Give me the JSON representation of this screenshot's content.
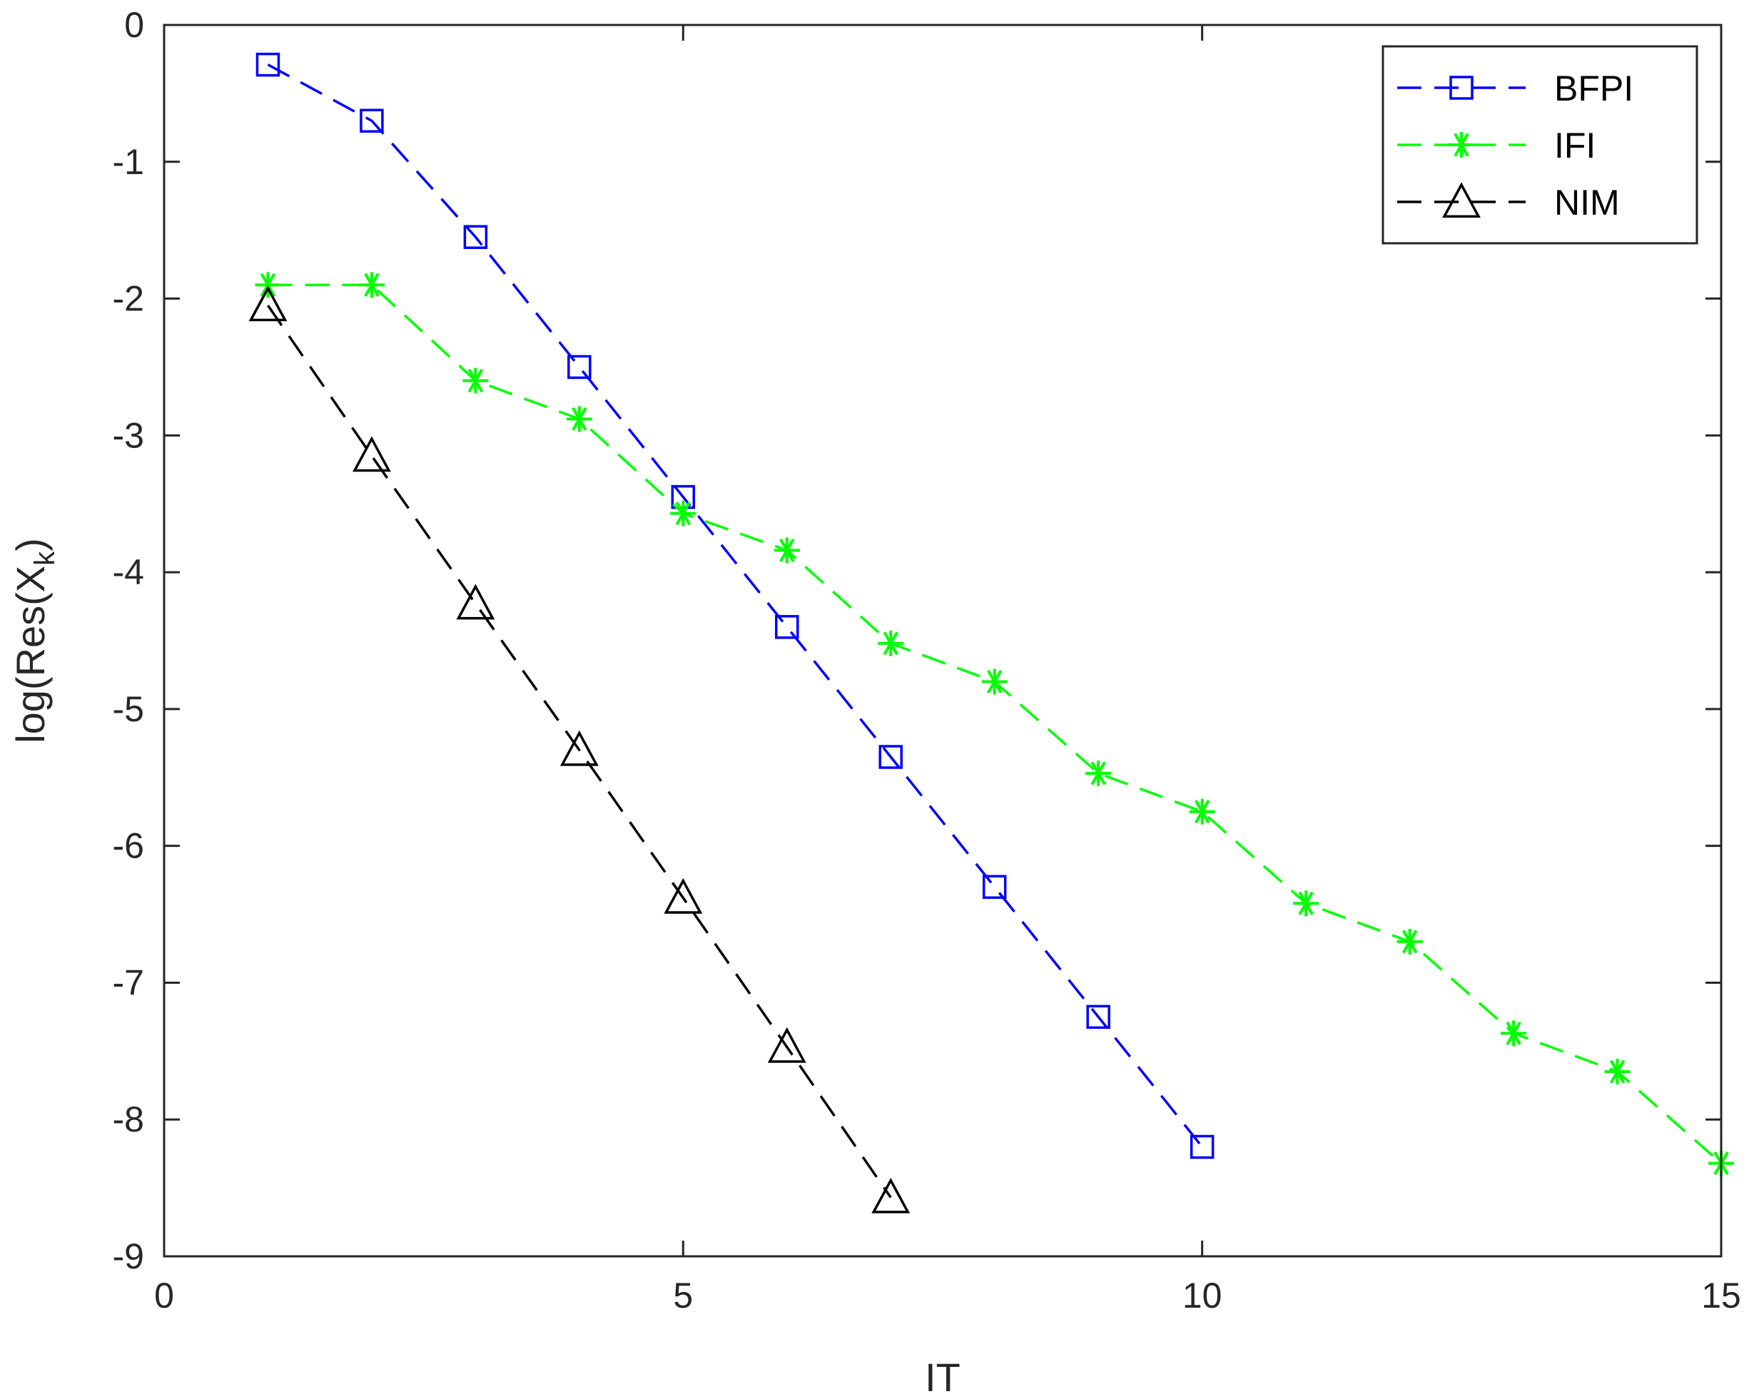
{
  "chart_data": {
    "type": "line",
    "xlabel": "IT",
    "ylabel": {
      "main": "log(Res(X",
      "sub": "k",
      "close": ")"
    },
    "xlim": [
      0,
      15
    ],
    "ylim": [
      -9,
      0
    ],
    "xticks": [
      0,
      5,
      10,
      15
    ],
    "xtick_labels": [
      "0",
      "5",
      "10",
      "15"
    ],
    "yticks": [
      0,
      -1,
      -2,
      -3,
      -4,
      -5,
      -6,
      -7,
      -8,
      -9
    ],
    "ytick_labels": [
      "0",
      "-1",
      "-2",
      "-3",
      "-4",
      "-5",
      "-6",
      "-7",
      "-8",
      "-9"
    ],
    "grid": false,
    "legend_position": "top-right",
    "series": [
      {
        "name": "BFPI",
        "color": "#0000ff",
        "marker": "square",
        "line_style": "dashed",
        "x": [
          1,
          2,
          3,
          4,
          5,
          6,
          7,
          8,
          9,
          10
        ],
        "y": [
          -0.29,
          -0.7,
          -1.55,
          -2.5,
          -3.45,
          -4.4,
          -5.35,
          -6.3,
          -7.25,
          -8.2
        ]
      },
      {
        "name": "IFI",
        "color": "#00ff00",
        "marker": "asterisk",
        "line_style": "dashed",
        "x": [
          1,
          2,
          3,
          4,
          5,
          6,
          7,
          8,
          9,
          10,
          11,
          12,
          13,
          14,
          15
        ],
        "y": [
          -1.9,
          -1.9,
          -2.6,
          -2.88,
          -3.57,
          -3.84,
          -4.52,
          -4.8,
          -5.47,
          -5.75,
          -6.42,
          -6.7,
          -7.37,
          -7.65,
          -8.32
        ]
      },
      {
        "name": "NIM",
        "color": "#000000",
        "marker": "triangle",
        "line_style": "dashed",
        "x": [
          1,
          2,
          3,
          4,
          5,
          6,
          7
        ],
        "y": [
          -2.05,
          -3.15,
          -4.23,
          -5.3,
          -6.38,
          -7.47,
          -8.57
        ]
      }
    ]
  }
}
